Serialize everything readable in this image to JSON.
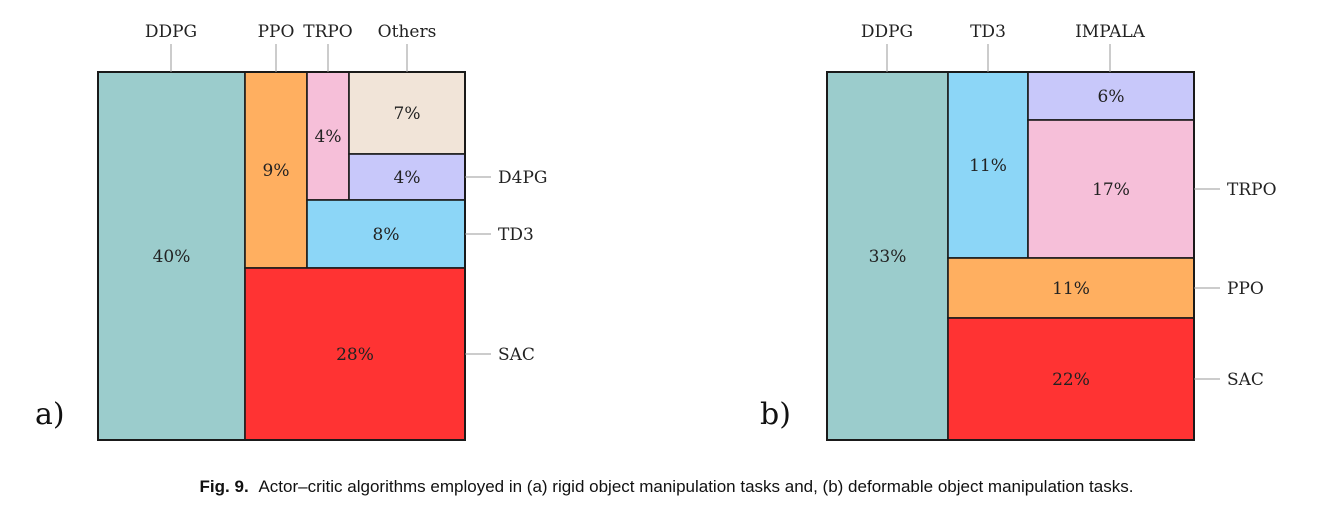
{
  "chart_data": [
    {
      "type": "treemap",
      "panel_label": "a)",
      "colors": {
        "DDPG": "#9bcccc",
        "PPO": "#ffaf60",
        "TRPO": "#f6bfd9",
        "Others": "#f1e4d8",
        "D4PG": "#c8c8fa",
        "TD3": "#8cd6f7",
        "SAC": "#ff3333"
      },
      "cells": [
        {
          "name": "DDPG",
          "value": 40,
          "label": "40%"
        },
        {
          "name": "PPO",
          "value": 9,
          "label": "9%"
        },
        {
          "name": "TRPO",
          "value": 4,
          "label": "4%"
        },
        {
          "name": "Others",
          "value": 7,
          "label": "7%"
        },
        {
          "name": "D4PG",
          "value": 4,
          "label": "4%"
        },
        {
          "name": "TD3",
          "value": 8,
          "label": "8%"
        },
        {
          "name": "SAC",
          "value": 28,
          "label": "28%"
        }
      ]
    },
    {
      "type": "treemap",
      "panel_label": "b)",
      "colors": {
        "DDPG": "#9bcccc",
        "TD3": "#8cd6f7",
        "IMPALA": "#c8c8fa",
        "TRPO": "#f6bfd9",
        "PPO": "#ffaf60",
        "SAC": "#ff3333"
      },
      "cells": [
        {
          "name": "DDPG",
          "value": 33,
          "label": "33%"
        },
        {
          "name": "TD3",
          "value": 11,
          "label": "11%"
        },
        {
          "name": "IMPALA",
          "value": 6,
          "label": "6%"
        },
        {
          "name": "TRPO",
          "value": 17,
          "label": "17%"
        },
        {
          "name": "PPO",
          "value": 11,
          "label": "11%"
        },
        {
          "name": "SAC",
          "value": 22,
          "label": "22%"
        }
      ]
    }
  ],
  "caption": {
    "label": "Fig. 9.",
    "text": "Actor–critic algorithms employed in (a) rigid object manipulation tasks and, (b) deformable object manipulation tasks."
  }
}
